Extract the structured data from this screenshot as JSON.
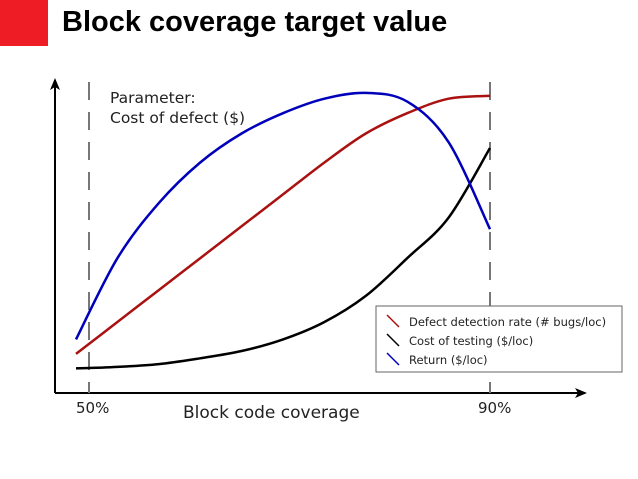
{
  "slide": {
    "title": "Block coverage target value",
    "accent_color": "#ee1c25"
  },
  "chart_data": {
    "type": "line",
    "xlabel": "Block code coverage",
    "ylabel": "",
    "x_ticks": [
      "50%",
      "90%"
    ],
    "annotation": [
      "Parameter:",
      "Cost of defect ($)"
    ],
    "legend_position": "bottom-right",
    "grid": false,
    "series": [
      {
        "name": "Defect detection rate (# bugs/loc)",
        "color": "#aa1111",
        "x": [
          0,
          0.1,
          0.2,
          0.3,
          0.4,
          0.5,
          0.6,
          0.7,
          0.8,
          0.9,
          1.0
        ],
        "y": [
          0.09,
          0.2,
          0.31,
          0.42,
          0.53,
          0.64,
          0.75,
          0.85,
          0.92,
          0.97,
          0.98
        ]
      },
      {
        "name": "Cost of testing ($/loc)",
        "color": "#000000",
        "x": [
          0,
          0.1,
          0.2,
          0.3,
          0.4,
          0.5,
          0.6,
          0.7,
          0.8,
          0.9,
          1.0
        ],
        "y": [
          0.04,
          0.045,
          0.055,
          0.075,
          0.1,
          0.14,
          0.2,
          0.29,
          0.42,
          0.56,
          0.8
        ]
      },
      {
        "name": "Return ($/loc)",
        "color": "#0000bb",
        "x": [
          0,
          0.1,
          0.2,
          0.3,
          0.4,
          0.5,
          0.6,
          0.7,
          0.8,
          0.9,
          1.0
        ],
        "y": [
          0.14,
          0.42,
          0.61,
          0.75,
          0.85,
          0.92,
          0.97,
          0.99,
          0.96,
          0.82,
          0.52
        ]
      }
    ]
  }
}
